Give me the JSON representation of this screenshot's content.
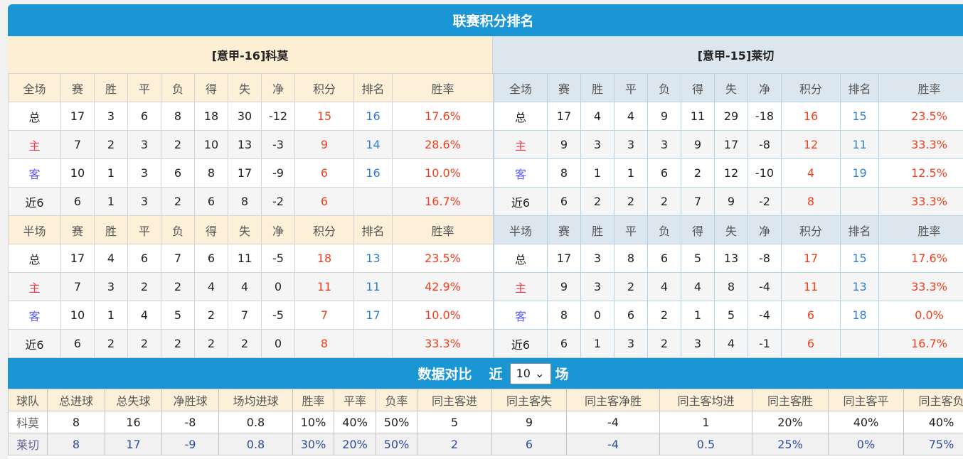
{
  "title": "联赛积分排名",
  "home_team": {
    "label": "[意甲-16]科莫"
  },
  "away_team": {
    "label": "[意甲-15]莱切"
  },
  "headers": {
    "full": [
      "全场",
      "赛",
      "胜",
      "平",
      "负",
      "得",
      "失",
      "净",
      "积分",
      "排名",
      "胜率"
    ],
    "half": [
      "半场",
      "赛",
      "胜",
      "平",
      "负",
      "得",
      "失",
      "净",
      "积分",
      "排名",
      "胜率"
    ]
  },
  "home": {
    "full": [
      [
        "总",
        "17",
        "3",
        "6",
        "8",
        "18",
        "30",
        "-12",
        "15",
        "16",
        "17.6%"
      ],
      [
        "主",
        "7",
        "2",
        "3",
        "2",
        "10",
        "13",
        "-3",
        "9",
        "14",
        "28.6%"
      ],
      [
        "客",
        "10",
        "1",
        "3",
        "6",
        "8",
        "17",
        "-9",
        "6",
        "16",
        "10.0%"
      ],
      [
        "近6",
        "6",
        "1",
        "3",
        "2",
        "6",
        "8",
        "-2",
        "6",
        "",
        "16.7%"
      ]
    ],
    "half": [
      [
        "总",
        "17",
        "4",
        "6",
        "7",
        "6",
        "11",
        "-5",
        "18",
        "13",
        "23.5%"
      ],
      [
        "主",
        "7",
        "3",
        "2",
        "2",
        "4",
        "4",
        "0",
        "11",
        "11",
        "42.9%"
      ],
      [
        "客",
        "10",
        "1",
        "4",
        "5",
        "2",
        "7",
        "-5",
        "7",
        "17",
        "10.0%"
      ],
      [
        "近6",
        "6",
        "2",
        "2",
        "2",
        "2",
        "2",
        "0",
        "8",
        "",
        "33.3%"
      ]
    ]
  },
  "away": {
    "full": [
      [
        "总",
        "17",
        "4",
        "4",
        "9",
        "11",
        "29",
        "-18",
        "16",
        "15",
        "23.5%"
      ],
      [
        "主",
        "9",
        "3",
        "3",
        "3",
        "9",
        "17",
        "-8",
        "12",
        "11",
        "33.3%"
      ],
      [
        "客",
        "8",
        "1",
        "1",
        "6",
        "2",
        "12",
        "-10",
        "4",
        "19",
        "12.5%"
      ],
      [
        "近6",
        "6",
        "2",
        "2",
        "2",
        "7",
        "9",
        "-2",
        "8",
        "",
        "33.3%"
      ]
    ],
    "half": [
      [
        "总",
        "17",
        "3",
        "8",
        "6",
        "5",
        "13",
        "-8",
        "17",
        "15",
        "17.6%"
      ],
      [
        "主",
        "9",
        "3",
        "2",
        "4",
        "4",
        "8",
        "-4",
        "11",
        "13",
        "33.3%"
      ],
      [
        "客",
        "8",
        "0",
        "6",
        "2",
        "1",
        "5",
        "-4",
        "6",
        "18",
        "0.0%"
      ],
      [
        "近6",
        "6",
        "1",
        "3",
        "2",
        "3",
        "4",
        "-1",
        "6",
        "",
        "16.7%"
      ]
    ]
  },
  "compare": {
    "title": "数据对比",
    "recent_prefix": "近",
    "recent_value": "10",
    "recent_suffix": "场",
    "headers": [
      "球队",
      "总进球",
      "总失球",
      "净胜球",
      "场均进球",
      "胜率",
      "平率",
      "负率",
      "同主客进",
      "同主客失",
      "同主客净胜",
      "同主客均进",
      "同主客胜",
      "同主客平",
      "同主客负"
    ],
    "rows": [
      [
        "科莫",
        "8",
        "16",
        "-8",
        "0.8",
        "10%",
        "40%",
        "50%",
        "5",
        "9",
        "-4",
        "1",
        "20%",
        "40%",
        "40%"
      ],
      [
        "莱切",
        "8",
        "17",
        "-9",
        "0.8",
        "30%",
        "20%",
        "50%",
        "2",
        "6",
        "-4",
        "0.5",
        "25%",
        "0%",
        "75%"
      ]
    ]
  },
  "colors": {
    "accent": "#1b96d5",
    "points": "#f43e1b",
    "rank": "#2f7fd2",
    "home": "#f0384a",
    "away": "#5b5bff"
  }
}
